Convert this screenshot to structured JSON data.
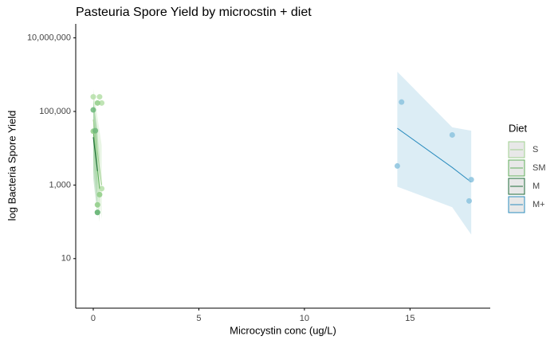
{
  "chart_data": {
    "type": "scatter",
    "title": "Pasteuria Spore Yield by microcstin + diet",
    "x_label": "Microcystin conc (ug/L)",
    "y_label": "log Bacteria Spore Yield",
    "legend_title": "Diet",
    "log_y": true,
    "xlim": [
      -0.83,
      18.8
    ],
    "ylim": [
      0.45,
      24000000
    ],
    "xticks": [
      0,
      5,
      10,
      15
    ],
    "yticks": [
      10,
      {
        "value": 1000,
        "label": "1,000"
      },
      {
        "value": 100000,
        "label": "100,000"
      },
      {
        "value": 10000000,
        "label": "10,000,000"
      }
    ],
    "series": [
      {
        "name": "S",
        "color": "#b5dfa8",
        "line_color": "#9fd08f",
        "x": [
          0,
          0.3,
          0.4,
          0.4
        ],
        "values": [
          250000,
          250000,
          170000,
          800
        ],
        "fit": {
          "x": [
            0,
            0.4
          ],
          "y": [
            60000,
            1000
          ],
          "lower": [
            5000,
            120
          ],
          "upper": [
            400000,
            12000
          ]
        }
      },
      {
        "name": "SM",
        "color": "#8fcc86",
        "line_color": "#5fae5a",
        "x": [
          0.2,
          0,
          0.2,
          0.3
        ],
        "values": [
          170000,
          29000,
          290,
          550
        ],
        "fit": {
          "x": [
            0,
            0.3
          ],
          "y": [
            30000,
            800
          ],
          "lower": [
            2500,
            100
          ],
          "upper": [
            250000,
            7000
          ]
        }
      },
      {
        "name": "M",
        "color": "#6db77a",
        "line_color": "#1f6b3a",
        "x": [
          0,
          0.1,
          0.2,
          0.2
        ],
        "values": [
          110000,
          30000,
          180,
          180
        ],
        "fit": {
          "x": [
            0,
            0.2
          ],
          "y": [
            20000,
            2400
          ],
          "lower": [
            1500,
            150
          ],
          "upper": [
            200000,
            30000
          ]
        }
      },
      {
        "name": "M+",
        "color": "#8cc3de",
        "line_color": "#2b8cbe",
        "x": [
          14.4,
          14.6,
          17.0,
          17.9,
          17.8
        ],
        "values": [
          3300,
          180000,
          23000,
          1400,
          370
        ],
        "fit": {
          "x": [
            14.4,
            17.0,
            17.9
          ],
          "y": [
            35000,
            3000,
            1200
          ],
          "lower": [
            900,
            250,
            45
          ],
          "upper": [
            1200000,
            37000,
            30000
          ]
        }
      }
    ]
  }
}
